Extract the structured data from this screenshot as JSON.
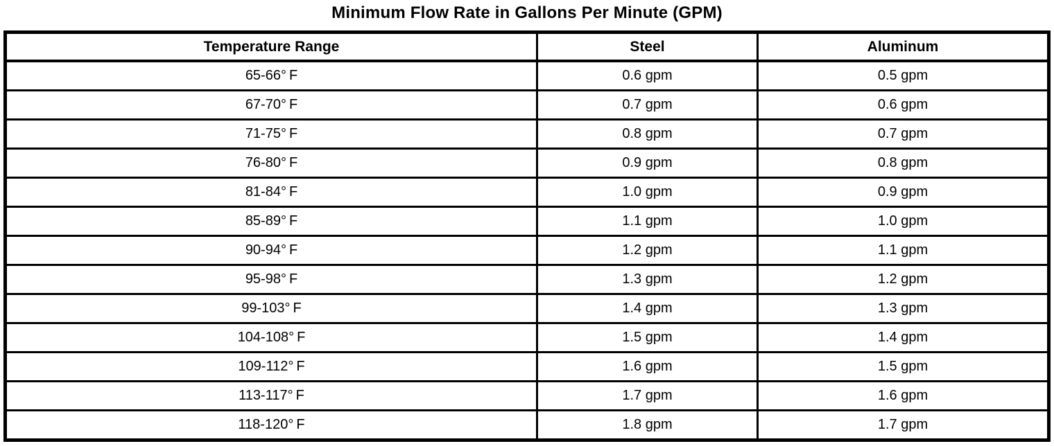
{
  "title": "Minimum Flow Rate in Gallons Per Minute (GPM)",
  "table": {
    "headers": [
      "Temperature Range",
      "Steel",
      "Aluminum"
    ],
    "rows": [
      {
        "temperature_range": "65-66° F",
        "steel": "0.6 gpm",
        "aluminum": "0.5 gpm"
      },
      {
        "temperature_range": "67-70° F",
        "steel": "0.7 gpm",
        "aluminum": "0.6 gpm"
      },
      {
        "temperature_range": "71-75° F",
        "steel": "0.8 gpm",
        "aluminum": "0.7 gpm"
      },
      {
        "temperature_range": "76-80° F",
        "steel": "0.9 gpm",
        "aluminum": "0.8 gpm"
      },
      {
        "temperature_range": "81-84° F",
        "steel": "1.0 gpm",
        "aluminum": "0.9 gpm"
      },
      {
        "temperature_range": "85-89° F",
        "steel": "1.1 gpm",
        "aluminum": "1.0 gpm"
      },
      {
        "temperature_range": "90-94° F",
        "steel": "1.2 gpm",
        "aluminum": "1.1 gpm"
      },
      {
        "temperature_range": "95-98° F",
        "steel": "1.3 gpm",
        "aluminum": "1.2 gpm"
      },
      {
        "temperature_range": "99-103° F",
        "steel": "1.4 gpm",
        "aluminum": "1.3 gpm"
      },
      {
        "temperature_range": "104-108° F",
        "steel": "1.5 gpm",
        "aluminum": "1.4 gpm"
      },
      {
        "temperature_range": "109-112° F",
        "steel": "1.6 gpm",
        "aluminum": "1.5 gpm"
      },
      {
        "temperature_range": "113-117° F",
        "steel": "1.7 gpm",
        "aluminum": "1.6 gpm"
      },
      {
        "temperature_range": "118-120° F",
        "steel": "1.8 gpm",
        "aluminum": "1.7 gpm"
      }
    ]
  },
  "colors": {
    "background": "#ffffff",
    "text": "#000000",
    "border": "#000000"
  },
  "chart_data": {
    "type": "table",
    "title": "Minimum Flow Rate in Gallons Per Minute (GPM)",
    "columns": [
      "Temperature Range",
      "Steel",
      "Aluminum"
    ],
    "rows": [
      [
        "65-66°F",
        "0.6 gpm",
        "0.5 gpm"
      ],
      [
        "67-70°F",
        "0.7 gpm",
        "0.6 gpm"
      ],
      [
        "71-75°F",
        "0.8 gpm",
        "0.7 gpm"
      ],
      [
        "76-80°F",
        "0.9 gpm",
        "0.8 gpm"
      ],
      [
        "81-84°F",
        "1.0 gpm",
        "0.9 gpm"
      ],
      [
        "85-89°F",
        "1.1 gpm",
        "1.0 gpm"
      ],
      [
        "90-94°F",
        "1.2 gpm",
        "1.1 gpm"
      ],
      [
        "95-98°F",
        "1.3 gpm",
        "1.2 gpm"
      ],
      [
        "99-103°F",
        "1.4 gpm",
        "1.3 gpm"
      ],
      [
        "104-108°F",
        "1.5 gpm",
        "1.4 gpm"
      ],
      [
        "109-112°F",
        "1.6 gpm",
        "1.5 gpm"
      ],
      [
        "113-117°F",
        "1.7 gpm",
        "1.6 gpm"
      ],
      [
        "118-120°F",
        "1.8 gpm",
        "1.7 gpm"
      ]
    ]
  }
}
